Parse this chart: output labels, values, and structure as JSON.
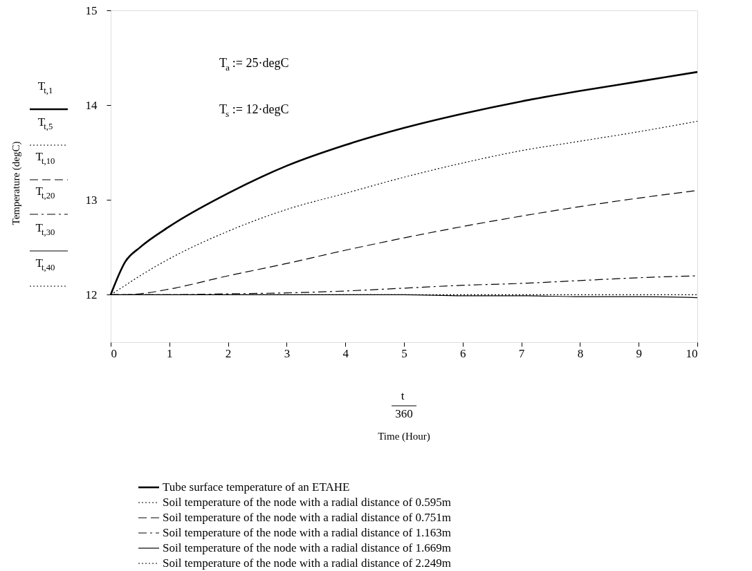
{
  "chart_data": {
    "type": "line",
    "x": [
      0,
      0.25,
      0.5,
      1,
      2,
      3,
      4,
      5,
      6,
      7,
      8,
      9,
      10
    ],
    "series": [
      {
        "name": "Tube surface temperature of an ETAHE",
        "color": "#000000",
        "line_style": "solid",
        "values": [
          12,
          12.35,
          12.5,
          12.72,
          13.07,
          13.36,
          13.58,
          13.76,
          13.91,
          14.04,
          14.15,
          14.25,
          14.35
        ]
      },
      {
        "name": "Soil temperature of the node with a radial distance of 0.595m",
        "color": "#000000",
        "line_style": "dotted",
        "values": [
          12,
          12.1,
          12.2,
          12.38,
          12.67,
          12.9,
          13.07,
          13.24,
          13.39,
          13.52,
          13.62,
          13.72,
          13.83
        ]
      },
      {
        "name": "Soil temperature of the node with a radial distance of 0.751m",
        "color": "#000000",
        "line_style": "dashed",
        "values": [
          12,
          12.0,
          12.01,
          12.06,
          12.2,
          12.33,
          12.47,
          12.6,
          12.72,
          12.83,
          12.93,
          13.02,
          13.1
        ]
      },
      {
        "name": "Soil temperature of the node with a radial distance of 1.163m",
        "color": "#000000",
        "line_style": "dashdot",
        "values": [
          12,
          12,
          12,
          12,
          12.01,
          12.02,
          12.04,
          12.07,
          12.1,
          12.12,
          12.15,
          12.18,
          12.2
        ]
      },
      {
        "name": "Soil temperature of the node with a radial distance of 1.669m",
        "color": "#000000",
        "line_style": "solid",
        "values": [
          12,
          12,
          12,
          12,
          12,
          12,
          12,
          12,
          11.99,
          11.99,
          11.98,
          11.98,
          11.97
        ]
      },
      {
        "name": "Soil temperature of the node with a radial distance of 2.249m",
        "color": "#000000",
        "line_style": "dotted",
        "values": [
          12,
          12,
          12,
          12,
          12,
          12,
          12,
          12,
          12,
          12,
          12,
          12,
          12
        ]
      }
    ],
    "xlim": [
      0,
      10
    ],
    "xticks": [
      0,
      1,
      2,
      3,
      4,
      5,
      6,
      7,
      8,
      9,
      10
    ],
    "ylim": [
      11.5,
      15
    ],
    "yticks": [
      12,
      13,
      14,
      15
    ],
    "grid": false,
    "legend": "bottom",
    "marker": "none",
    "annotations": [
      "T$_{t,1}$",
      "T$_{t,5}$",
      "T$_{t,10}$",
      "T$_{t,20}$",
      "T$_{t,30}$",
      "T$_{t,40}$",
      "t",
      "360",
      "T$_{a}$ := 25·degC",
      "T$_{s}$ := 12·degC",
      "Time (Hour)",
      "Temperature (degC)"
    ]
  }
}
